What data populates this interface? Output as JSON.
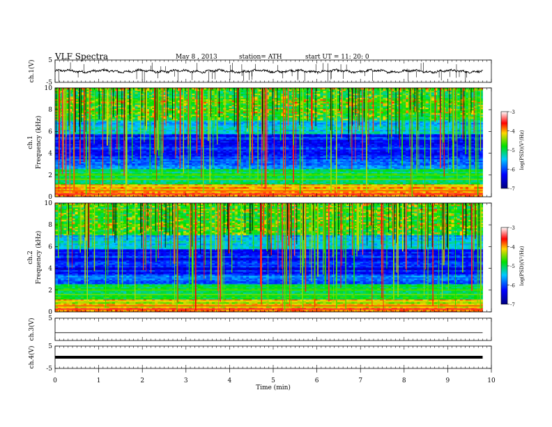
{
  "header": {
    "title": "VLF  Spectra",
    "date": "May 8  , 2013",
    "station": "station= ATH",
    "start": "start  UT  =    11: 20: 0"
  },
  "chart_data": [
    {
      "id": "ch1_voltage",
      "type": "line",
      "ylabel": "ch.1(V)",
      "ylim": [
        -5,
        5
      ],
      "y_ticks": [
        "5",
        "-5"
      ],
      "xlim": [
        0,
        10
      ],
      "x_end": 9.8,
      "baseline": 0,
      "style": "noisy waveform with spikes"
    },
    {
      "id": "ch1_spectrogram",
      "type": "heatmap",
      "channel_label": "ch.1",
      "ylabel": "Frequency  (kHz)",
      "ylim": [
        0,
        10
      ],
      "y_ticks": [
        "0",
        "2",
        "4",
        "6",
        "8",
        "10"
      ],
      "xlim": [
        0,
        10
      ],
      "x_end": 9.8,
      "colorbar": {
        "label": "log(PSD)(V²/Hz)",
        "range": [
          -7,
          -3
        ],
        "ticks": [
          "-3",
          "-4",
          "-5",
          "-6",
          "-7"
        ],
        "colors": [
          "#ffffff",
          "#ff0000",
          "#ffd700",
          "#00e000",
          "#00c8ff",
          "#0000ff",
          "#000080"
        ]
      }
    },
    {
      "id": "ch2_spectrogram",
      "type": "heatmap",
      "channel_label": "ch.2",
      "ylabel": "Frequency  (kHz)",
      "ylim": [
        0,
        10
      ],
      "y_ticks": [
        "0",
        "2",
        "4",
        "6",
        "8",
        "10"
      ],
      "xlim": [
        0,
        10
      ],
      "x_end": 9.8,
      "colorbar": {
        "label": "log(PSD)(V²/Hz)",
        "range": [
          -7,
          -3
        ],
        "ticks": [
          "-3",
          "-4",
          "-5",
          "-6",
          "-7"
        ],
        "colors": [
          "#ffffff",
          "#ff0000",
          "#ffd700",
          "#00e000",
          "#00c8ff",
          "#0000ff",
          "#000080"
        ]
      }
    },
    {
      "id": "ch3_voltage",
      "type": "line",
      "ylabel": "ch.3(V)",
      "ylim": [
        -5,
        5
      ],
      "y_ticks": [
        "5"
      ],
      "xlim": [
        0,
        10
      ],
      "x_end": 9.8,
      "baseline": -1.5,
      "style": "flat thin line"
    },
    {
      "id": "ch4_voltage",
      "type": "line",
      "ylabel": "ch.4(V)",
      "ylim": [
        -5,
        5
      ],
      "y_ticks": [
        "5",
        "-5"
      ],
      "xlim": [
        0,
        10
      ],
      "x_end": 9.8,
      "baseline": 0,
      "style": "flat thick line"
    }
  ],
  "x_axis": {
    "label": "Time  (min)",
    "ticks": [
      "0",
      "1",
      "2",
      "3",
      "4",
      "5",
      "6",
      "7",
      "8",
      "9",
      "10"
    ]
  }
}
